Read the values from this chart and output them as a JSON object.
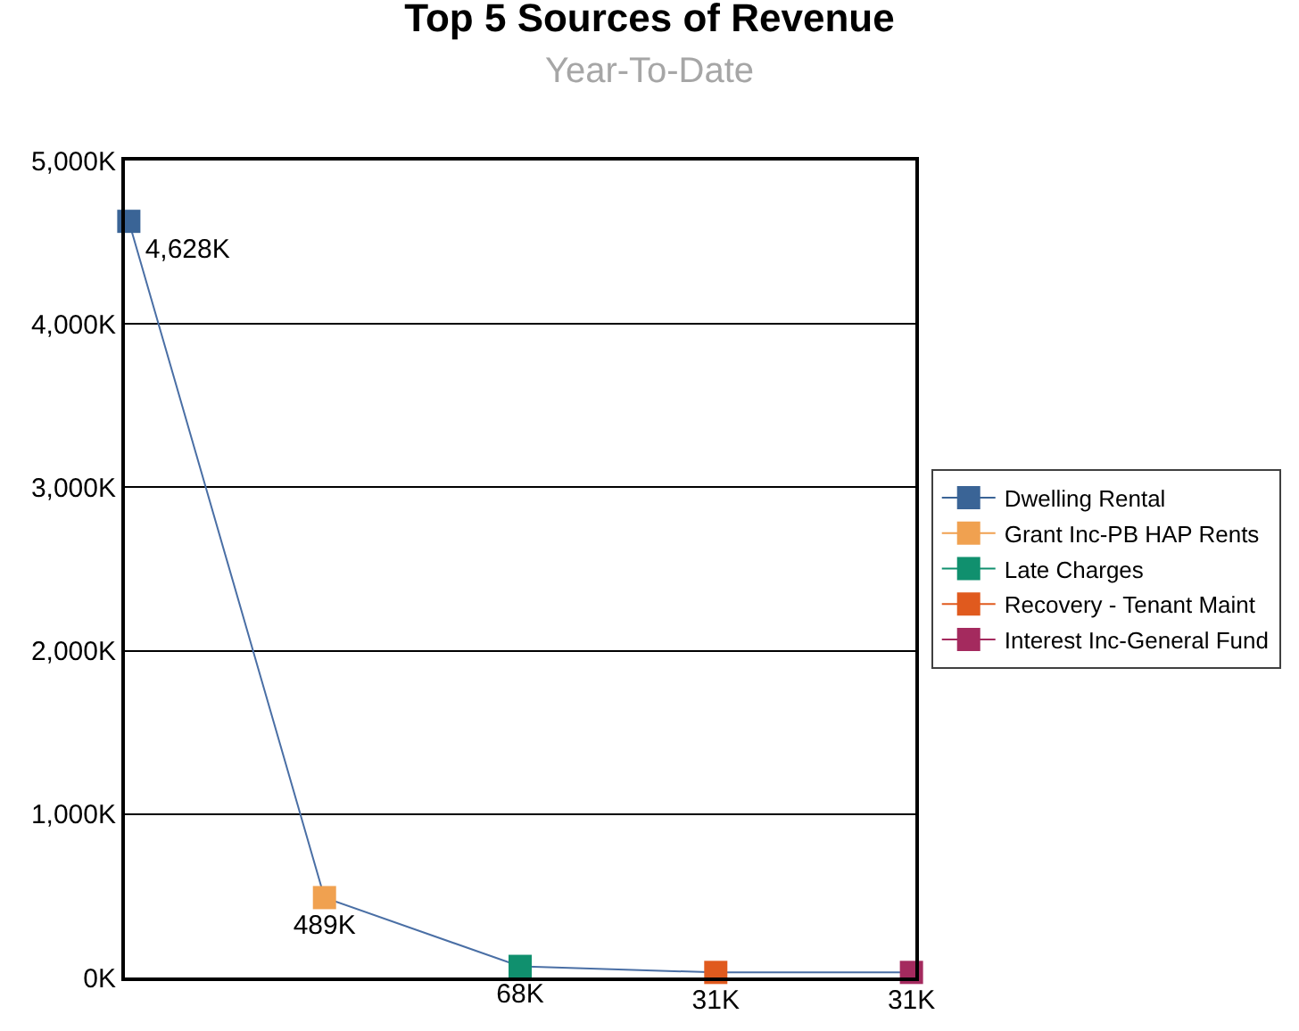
{
  "chart_data": {
    "type": "line",
    "title": "Top 5 Sources of Revenue",
    "subtitle": "Year-To-Date",
    "categories": [
      null,
      null,
      null,
      null,
      null
    ],
    "series": [
      {
        "color": "#4a6fa5",
        "marker": "none",
        "values": [
          4628,
          489,
          68,
          31,
          31
        ]
      },
      {
        "name": "Dwelling Rental",
        "color": "#3a6496",
        "values": [
          4628,
          null,
          null,
          null,
          null
        ],
        "value_labels": [
          "4,628K",
          null,
          null,
          null,
          null
        ]
      },
      {
        "name": "Grant Inc-PB HAP Rents",
        "color": "#f0a150",
        "values": [
          null,
          489,
          null,
          null,
          null
        ],
        "value_labels": [
          null,
          "489K",
          null,
          null,
          null
        ]
      },
      {
        "name": "Late Charges",
        "color": "#10906e",
        "values": [
          null,
          null,
          68,
          null,
          null
        ],
        "value_labels": [
          null,
          null,
          "68K",
          null,
          null
        ]
      },
      {
        "name": "Recovery - Tenant Maint",
        "color": "#e05a1e",
        "values": [
          null,
          null,
          null,
          31,
          null
        ],
        "value_labels": [
          null,
          null,
          null,
          "31K",
          null
        ]
      },
      {
        "name": "Interest Inc-General Fund",
        "color": "#a42a5e",
        "values": [
          null,
          null,
          null,
          null,
          31
        ],
        "value_labels": [
          null,
          null,
          null,
          null,
          "31K"
        ]
      }
    ],
    "ylim": [
      0,
      5000
    ],
    "yticks": [
      {
        "value": 0,
        "label": "0K"
      },
      {
        "value": 1000,
        "label": "1,000K"
      },
      {
        "value": 2000,
        "label": "2,000K"
      },
      {
        "value": 3000,
        "label": "3,000K"
      },
      {
        "value": 4000,
        "label": "4,000K"
      },
      {
        "value": 5000,
        "label": "5,000K"
      }
    ],
    "grid": "y",
    "legend": "right",
    "tick_labels": "y",
    "marker": "square",
    "line_style": "solid"
  }
}
